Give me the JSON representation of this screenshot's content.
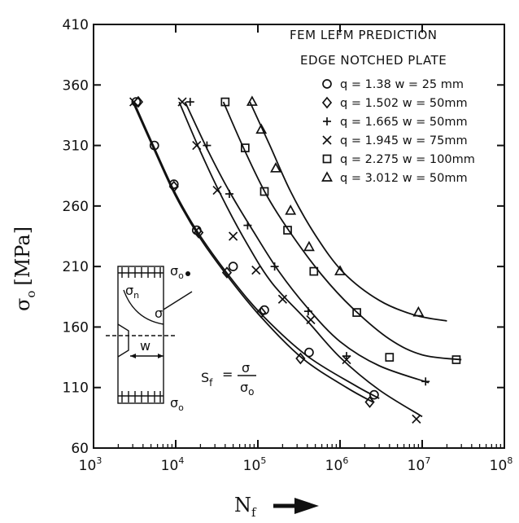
{
  "chart_data": {
    "type": "line",
    "title": "FEM LEFM PREDICTION",
    "subtitle": "EDGE NOTCHED PLATE",
    "xlabel": "N",
    "xlabel_sub": "f",
    "ylabel": "σ",
    "ylabel_sub": "o",
    "ylabel_unit": "[MPa]",
    "x_scale": "log",
    "xlim": [
      1000,
      100000000
    ],
    "ylim": [
      60,
      410
    ],
    "x_ticks": [
      {
        "value": 1000,
        "base": "10",
        "exp": "3"
      },
      {
        "value": 10000,
        "base": "10",
        "exp": "4"
      },
      {
        "value": 100000,
        "base": "10",
        "exp": "5"
      },
      {
        "value": 1000000,
        "base": "10",
        "exp": "6"
      },
      {
        "value": 10000000,
        "base": "10",
        "exp": "7"
      },
      {
        "value": 100000000,
        "base": "10",
        "exp": "8"
      }
    ],
    "y_ticks": [
      60,
      110,
      160,
      210,
      260,
      310,
      360,
      410
    ],
    "grid": false,
    "legend_position": "top-right",
    "series": [
      {
        "name": "q = 1.38  w = 25 mm",
        "marker": "circle",
        "points": [
          [
            3300,
            346
          ],
          [
            5500,
            310
          ],
          [
            9500,
            278
          ],
          [
            18000,
            240
          ],
          [
            50000,
            210
          ],
          [
            120000,
            174
          ],
          [
            420000,
            139
          ],
          [
            2600000,
            104
          ]
        ],
        "curve": [
          [
            3100,
            346
          ],
          [
            5500,
            308
          ],
          [
            10000,
            270
          ],
          [
            20000,
            235
          ],
          [
            50000,
            198
          ],
          [
            120000,
            168
          ],
          [
            400000,
            136
          ],
          [
            1500000,
            112
          ],
          [
            3000000,
            101
          ]
        ]
      },
      {
        "name": "q = 1.502  w = 50mm",
        "marker": "diamond",
        "points": [
          [
            3500,
            346
          ],
          [
            9500,
            276
          ],
          [
            19000,
            238
          ],
          [
            42000,
            205
          ],
          [
            110000,
            172
          ],
          [
            330000,
            134
          ],
          [
            2300000,
            98
          ]
        ],
        "curve": [
          [
            3000,
            346
          ],
          [
            5500,
            306
          ],
          [
            10000,
            268
          ],
          [
            20000,
            233
          ],
          [
            45000,
            200
          ],
          [
            110000,
            168
          ],
          [
            350000,
            134
          ],
          [
            1200000,
            110
          ],
          [
            2500000,
            98
          ]
        ]
      },
      {
        "name": "q = 1.665  w = 50mm",
        "marker": "plus",
        "points": [
          [
            15000,
            346
          ],
          [
            24000,
            310
          ],
          [
            45000,
            270
          ],
          [
            75000,
            244
          ],
          [
            160000,
            210
          ],
          [
            410000,
            173
          ],
          [
            1200000,
            136
          ],
          [
            11000000,
            115
          ]
        ],
        "curve": [
          [
            13000,
            346
          ],
          [
            25000,
            305
          ],
          [
            45000,
            272
          ],
          [
            90000,
            238
          ],
          [
            180000,
            206
          ],
          [
            400000,
            176
          ],
          [
            1000000,
            148
          ],
          [
            3000000,
            128
          ],
          [
            12000000,
            114
          ]
        ]
      },
      {
        "name": "q = 1.945  w = 75mm",
        "marker": "x",
        "points": [
          [
            3100,
            346
          ],
          [
            12000,
            346
          ],
          [
            18000,
            310
          ],
          [
            32000,
            273
          ],
          [
            50000,
            235
          ],
          [
            95000,
            207
          ],
          [
            200000,
            183
          ],
          [
            440000,
            166
          ],
          [
            1200000,
            133
          ],
          [
            8500000,
            84
          ]
        ],
        "curve": [
          [
            11000,
            346
          ],
          [
            20000,
            305
          ],
          [
            38000,
            265
          ],
          [
            75000,
            228
          ],
          [
            150000,
            196
          ],
          [
            400000,
            165
          ],
          [
            1000000,
            135
          ],
          [
            3000000,
            108
          ],
          [
            10000000,
            86
          ]
        ]
      },
      {
        "name": "q = 2.275  w = 100mm",
        "marker": "square",
        "points": [
          [
            40000,
            346
          ],
          [
            70000,
            308
          ],
          [
            120000,
            272
          ],
          [
            230000,
            240
          ],
          [
            480000,
            206
          ],
          [
            1600000,
            172
          ],
          [
            4000000,
            135
          ],
          [
            26000000,
            133
          ]
        ],
        "curve": [
          [
            38000,
            346
          ],
          [
            70000,
            305
          ],
          [
            130000,
            268
          ],
          [
            260000,
            236
          ],
          [
            600000,
            203
          ],
          [
            1400000,
            176
          ],
          [
            4000000,
            150
          ],
          [
            10000000,
            137
          ],
          [
            30000000,
            133
          ]
        ]
      },
      {
        "name": "q = 3.012 w = 50mm",
        "marker": "triangle",
        "points": [
          [
            85000,
            346
          ],
          [
            110000,
            323
          ],
          [
            165000,
            291
          ],
          [
            250000,
            256
          ],
          [
            420000,
            226
          ],
          [
            1000000,
            206
          ],
          [
            9000000,
            172
          ]
        ],
        "curve": [
          [
            80000,
            346
          ],
          [
            140000,
            310
          ],
          [
            250000,
            272
          ],
          [
            500000,
            236
          ],
          [
            1100000,
            205
          ],
          [
            3000000,
            182
          ],
          [
            8000000,
            170
          ],
          [
            20000000,
            165
          ]
        ]
      }
    ],
    "annotations": {
      "formula_lhs": "S",
      "formula_lhs_sub": "f",
      "formula_eq": "=",
      "formula_num": "σ",
      "formula_den": "σ",
      "formula_den_sub": "o",
      "inset_top_label": "σ",
      "inset_top_sub": "o",
      "inset_bottom_label": "σ",
      "inset_bottom_sub": "o",
      "inset_sigma_n": "σ",
      "inset_sigma_n_sub": "n",
      "inset_sigma": "σ",
      "inset_width": "w"
    }
  }
}
